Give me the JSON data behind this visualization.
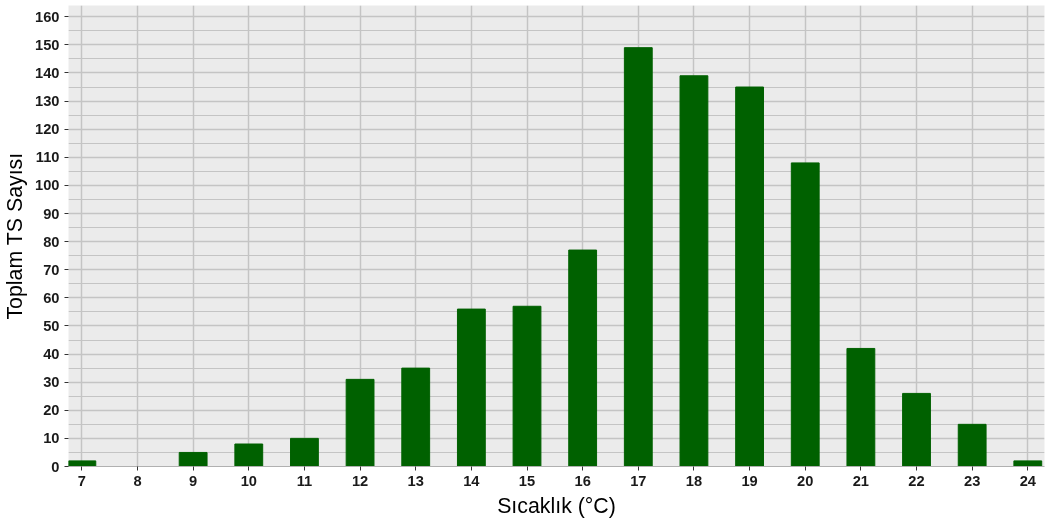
{
  "chart_data": {
    "type": "bar",
    "xlabel": "Sıcaklık (°C)",
    "ylabel": "Toplam TS Sayısı",
    "x": [
      7,
      8,
      9,
      10,
      11,
      12,
      13,
      14,
      15,
      16,
      17,
      18,
      19,
      20,
      21,
      22,
      23,
      24
    ],
    "values": [
      2,
      0,
      5,
      8,
      10,
      31,
      35,
      56,
      57,
      77,
      149,
      139,
      135,
      108,
      42,
      26,
      15,
      2
    ],
    "color": "#006100",
    "xlim": [
      6.76,
      24.3
    ],
    "xticks": [
      7,
      8,
      9,
      10,
      11,
      12,
      13,
      14,
      15,
      16,
      17,
      18,
      19,
      20,
      21,
      22,
      23,
      24
    ],
    "ylim": [
      0,
      164
    ],
    "yticks": [
      0,
      10,
      20,
      30,
      40,
      50,
      60,
      70,
      80,
      90,
      100,
      110,
      120,
      130,
      140,
      150,
      160
    ],
    "grid": true
  }
}
